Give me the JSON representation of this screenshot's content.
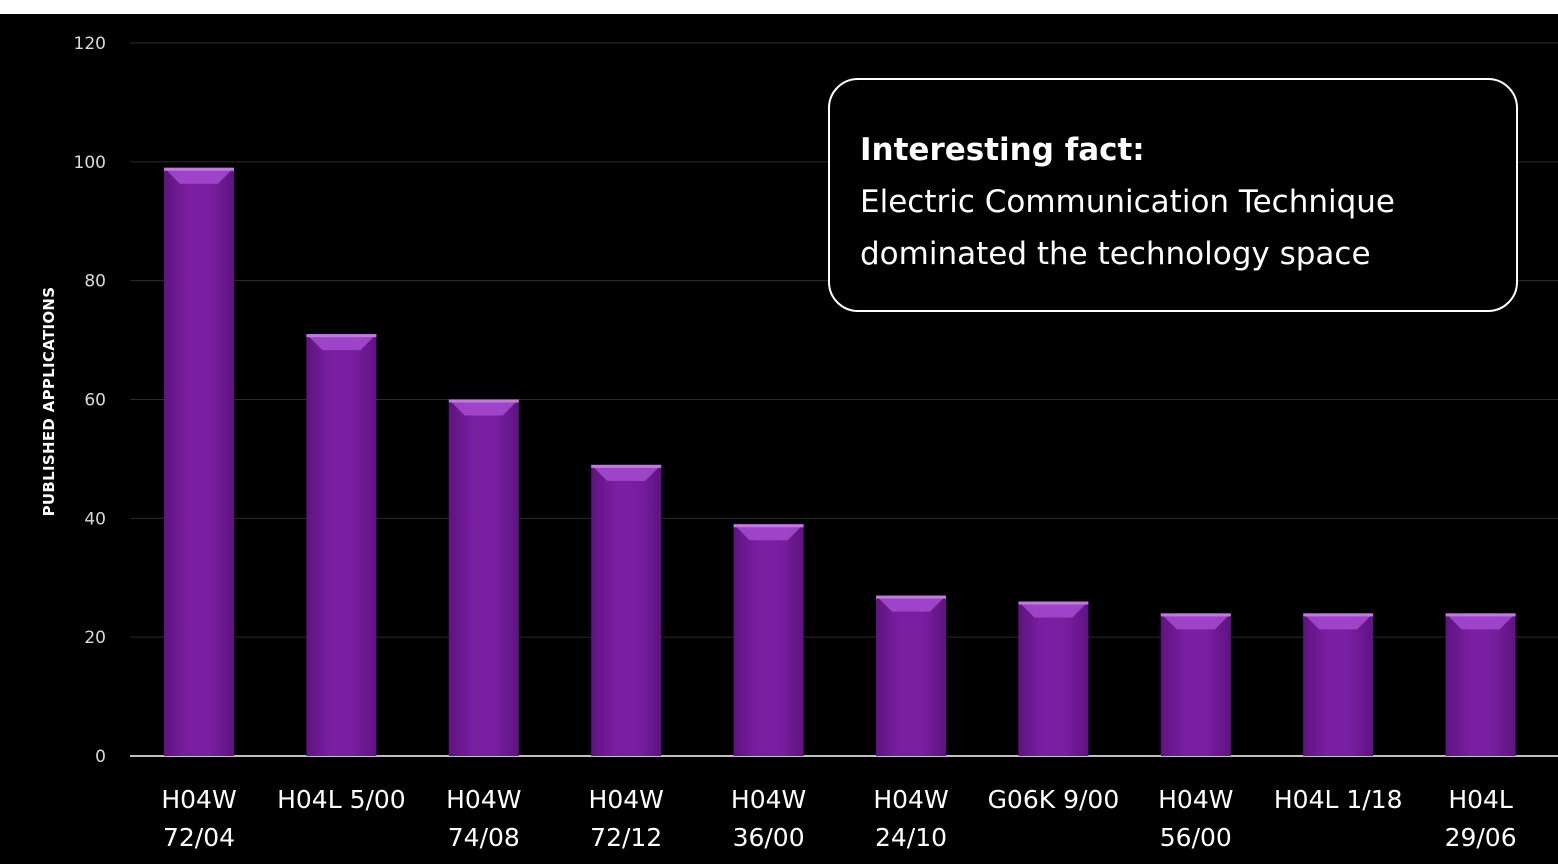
{
  "chart_data": {
    "type": "bar",
    "ylabel": "PUBLISHED APPLICATIONS",
    "ylim": [
      0,
      120
    ],
    "yticks": [
      0,
      20,
      40,
      60,
      80,
      100,
      120
    ],
    "grid": true,
    "categories": [
      [
        "H04W",
        "72/04"
      ],
      [
        "H04L 5/00"
      ],
      [
        "H04W",
        "74/08"
      ],
      [
        "H04W",
        "72/12"
      ],
      [
        "H04W",
        "36/00"
      ],
      [
        "H04W",
        "24/10"
      ],
      [
        "G06K 9/00"
      ],
      [
        "H04W",
        "56/00"
      ],
      [
        "H04L 1/18"
      ],
      [
        "H04L",
        "29/06"
      ]
    ],
    "values": [
      99,
      71,
      60,
      49,
      39,
      27,
      26,
      24,
      24,
      24
    ],
    "bar_color": "#7a1fa2",
    "bar_highlight": "#a64bd0"
  },
  "callout": {
    "title": "Interesting fact:",
    "body": "Electric Communication Technique dominated the technology space"
  }
}
